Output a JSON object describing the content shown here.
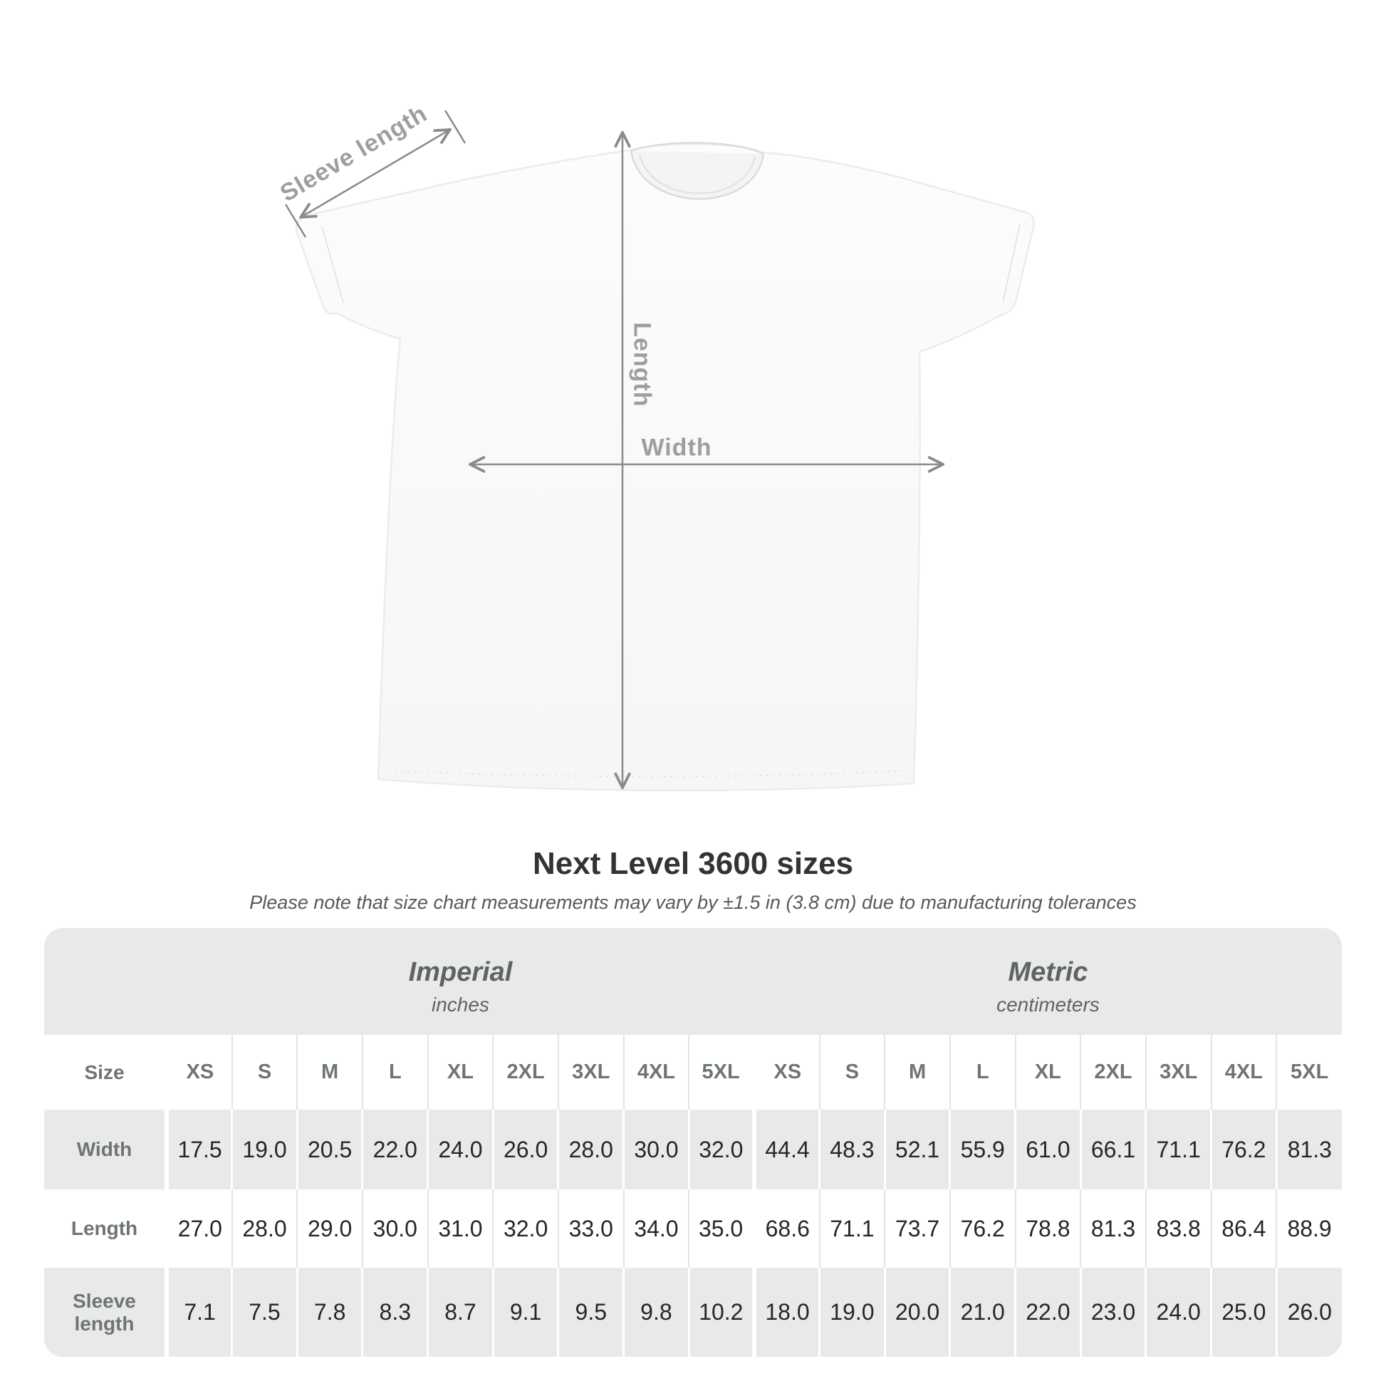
{
  "title": "Next Level 3600 sizes",
  "note": "Please note that size chart measurements may vary by ±1.5 in (3.8 cm) due to manufacturing tolerances",
  "diagram": {
    "sleeve_label": "Sleeve length",
    "length_label": "Length",
    "width_label": "Width"
  },
  "table": {
    "corner_label": "Size",
    "groups": [
      {
        "label": "Imperial",
        "unit": "inches"
      },
      {
        "label": "Metric",
        "unit": "centimeters"
      }
    ]
  },
  "colors": {
    "panel_gray": "#e9e9e9",
    "row_white": "#ffffff",
    "header_text": "#6e7577",
    "value_text": "#262626",
    "title_text": "#333333",
    "note_text": "#595959",
    "diagram_line": "#8a8a8a",
    "diagram_label": "#9e9e9e",
    "shirt_fill": "#fafafa"
  },
  "chart_data": {
    "type": "table",
    "title": "Next Level 3600 sizes",
    "sizes": [
      "XS",
      "S",
      "M",
      "L",
      "XL",
      "2XL",
      "3XL",
      "4XL",
      "5XL"
    ],
    "unit_groups": [
      {
        "name": "Imperial",
        "unit": "inches"
      },
      {
        "name": "Metric",
        "unit": "centimeters"
      }
    ],
    "rows": [
      {
        "label": "Width",
        "imperial": [
          17.5,
          19.0,
          20.5,
          22.0,
          24.0,
          26.0,
          28.0,
          30.0,
          32.0
        ],
        "metric": [
          44.4,
          48.3,
          52.1,
          55.9,
          61.0,
          66.1,
          71.1,
          76.2,
          81.3
        ]
      },
      {
        "label": "Length",
        "imperial": [
          27.0,
          28.0,
          29.0,
          30.0,
          31.0,
          32.0,
          33.0,
          34.0,
          35.0
        ],
        "metric": [
          68.6,
          71.1,
          73.7,
          76.2,
          78.8,
          81.3,
          83.8,
          86.4,
          88.9
        ]
      },
      {
        "label": "Sleeve length",
        "imperial": [
          7.1,
          7.5,
          7.8,
          8.3,
          8.7,
          9.1,
          9.5,
          9.8,
          10.2
        ],
        "metric": [
          18.0,
          19.0,
          20.0,
          21.0,
          22.0,
          23.0,
          24.0,
          25.0,
          26.0
        ]
      }
    ]
  }
}
